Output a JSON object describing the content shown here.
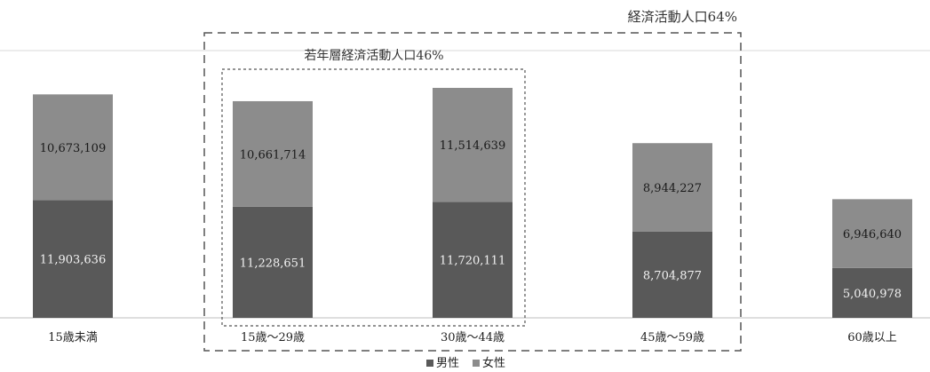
{
  "chart_data": {
    "type": "bar",
    "stacked": true,
    "categories": [
      "15歳未満",
      "15歳～29歳",
      "30歳～44歳",
      "45歳～59歳",
      "60歳以上"
    ],
    "series": [
      {
        "name": "男性",
        "values": [
          11903636,
          11228651,
          11720111,
          8704877,
          5040978
        ],
        "color": "#595959"
      },
      {
        "name": "女性",
        "values": [
          10673109,
          10661714,
          11514639,
          8944227,
          6946640
        ],
        "color": "#8c8c8c"
      }
    ],
    "ylim": [
      0,
      27000000
    ],
    "grid": true,
    "legend_position": "bottom",
    "annotations": [
      {
        "text": "経済活動人口64%",
        "categories": [
          "15歳～29歳",
          "30歳～44歳",
          "45歳～59歳"
        ]
      },
      {
        "text": "若年層経済活動人口46%",
        "categories": [
          "15歳～29歳",
          "30歳～44歳"
        ]
      }
    ]
  }
}
